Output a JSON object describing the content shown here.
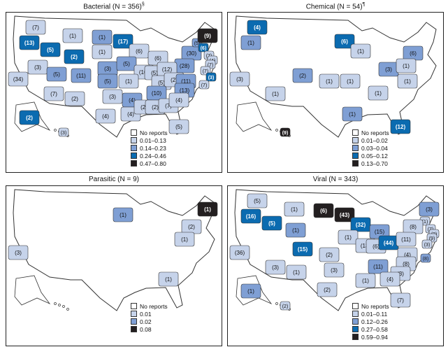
{
  "colors": {
    "level0": "#ffffff",
    "level1": "#c6d3ea",
    "level2": "#7f9fd4",
    "level3": "#0b6bb0",
    "level4": "#231f20"
  },
  "panels": [
    {
      "title": "Bacterial (N = 356)",
      "footnote": "§",
      "legend": [
        "No reports",
        "0.01–0.13",
        "0.14–0.23",
        "0.24–0.46",
        "0.47–0.80"
      ],
      "states": [
        {
          "state": "WA",
          "count": 7,
          "level": 1
        },
        {
          "state": "OR",
          "count": 13,
          "level": 3
        },
        {
          "state": "ID",
          "count": 5,
          "level": 3
        },
        {
          "state": "MT",
          "count": 1,
          "level": 1
        },
        {
          "state": "ND",
          "count": 1,
          "level": 2
        },
        {
          "state": "MN",
          "count": 17,
          "level": 3
        },
        {
          "state": "WY",
          "count": 2,
          "level": 3
        },
        {
          "state": "SD",
          "count": 1,
          "level": 1
        },
        {
          "state": "WI",
          "count": 6,
          "level": 1
        },
        {
          "state": "MI",
          "count": 6,
          "level": 1
        },
        {
          "state": "NY",
          "count": 30,
          "level": 2
        },
        {
          "state": "VT",
          "count": 5,
          "level": 2
        },
        {
          "state": "NH",
          "count": 6,
          "level": 3
        },
        {
          "state": "ME",
          "count": 9,
          "level": 4
        },
        {
          "state": "MA",
          "count": 7,
          "level": 1
        },
        {
          "state": "RI",
          "count": 4,
          "level": 1
        },
        {
          "state": "CT",
          "count": 7,
          "level": 1
        },
        {
          "state": "NJ",
          "count": 7,
          "level": 1
        },
        {
          "state": "DE",
          "count": 3,
          "level": 3
        },
        {
          "state": "MD",
          "count": 7,
          "level": 1
        },
        {
          "state": "PA",
          "count": 28,
          "level": 2
        },
        {
          "state": "CA",
          "count": 34,
          "level": 1
        },
        {
          "state": "NV",
          "count": 3,
          "level": 1
        },
        {
          "state": "UT",
          "count": 5,
          "level": 2
        },
        {
          "state": "CO",
          "count": 11,
          "level": 2
        },
        {
          "state": "NE",
          "count": 3,
          "level": 2
        },
        {
          "state": "KS",
          "count": 5,
          "level": 2
        },
        {
          "state": "IA",
          "count": 5,
          "level": 2
        },
        {
          "state": "IL",
          "count": 10,
          "level": 1
        },
        {
          "state": "IN",
          "count": 5,
          "level": 1
        },
        {
          "state": "OH",
          "count": 12,
          "level": 1
        },
        {
          "state": "MO",
          "count": 1,
          "level": 1
        },
        {
          "state": "KY",
          "count": 5,
          "level": 1
        },
        {
          "state": "WV",
          "count": 2,
          "level": 1
        },
        {
          "state": "VA",
          "count": 11,
          "level": 2
        },
        {
          "state": "NC",
          "count": 13,
          "level": 2
        },
        {
          "state": "TN",
          "count": 10,
          "level": 2
        },
        {
          "state": "AR",
          "count": 4,
          "level": 2
        },
        {
          "state": "OK",
          "count": 3,
          "level": 1
        },
        {
          "state": "AZ",
          "count": 7,
          "level": 1
        },
        {
          "state": "NM",
          "count": 2,
          "level": 1
        },
        {
          "state": "TX",
          "count": 4,
          "level": 1
        },
        {
          "state": "LA",
          "count": 4,
          "level": 1
        },
        {
          "state": "MS",
          "count": 2,
          "level": 1
        },
        {
          "state": "AL",
          "count": 2,
          "level": 1
        },
        {
          "state": "GA",
          "count": 7,
          "level": 1
        },
        {
          "state": "SC",
          "count": 4,
          "level": 1
        },
        {
          "state": "FL",
          "count": 5,
          "level": 1
        },
        {
          "state": "AK",
          "count": 2,
          "level": 3
        },
        {
          "state": "HI",
          "count": 3,
          "level": 1
        }
      ]
    },
    {
      "title": "Chemical (N = 54)",
      "footnote": "¶",
      "legend": [
        "No reports",
        "0.01–0.02",
        "0.03–0.04",
        "0.05–0.12",
        "0.13–0.70"
      ],
      "states": [
        {
          "state": "WA",
          "count": 4,
          "level": 3
        },
        {
          "state": "OR",
          "count": 1,
          "level": 2
        },
        {
          "state": "MN",
          "count": 6,
          "level": 3
        },
        {
          "state": "WI",
          "count": 1,
          "level": 1
        },
        {
          "state": "NY",
          "count": 6,
          "level": 2
        },
        {
          "state": "CA",
          "count": 3,
          "level": 1
        },
        {
          "state": "CO",
          "count": 2,
          "level": 2
        },
        {
          "state": "KS",
          "count": 1,
          "level": 1
        },
        {
          "state": "MO",
          "count": 1,
          "level": 1
        },
        {
          "state": "OH",
          "count": 3,
          "level": 2
        },
        {
          "state": "PA",
          "count": 1,
          "level": 1
        },
        {
          "state": "VA",
          "count": 1,
          "level": 1
        },
        {
          "state": "TN",
          "count": 1,
          "level": 1
        },
        {
          "state": "AZ",
          "count": 1,
          "level": 1
        },
        {
          "state": "LA",
          "count": 1,
          "level": 2
        },
        {
          "state": "FL",
          "count": 12,
          "level": 3
        },
        {
          "state": "HI",
          "count": 9,
          "level": 4
        }
      ]
    },
    {
      "title": "Parasitic (N = 9)",
      "footnote": "",
      "legend": [
        "No reports",
        "0.01",
        "0.02",
        "0.08"
      ],
      "states": [
        {
          "state": "MN",
          "count": 1,
          "level": 2
        },
        {
          "state": "ME",
          "count": 1,
          "level": 4
        },
        {
          "state": "NY",
          "count": 2,
          "level": 1
        },
        {
          "state": "PA",
          "count": 1,
          "level": 1
        },
        {
          "state": "CA",
          "count": 3,
          "level": 1
        },
        {
          "state": "GA",
          "count": 1,
          "level": 1
        }
      ]
    },
    {
      "title": "Viral (N = 343)",
      "footnote": "",
      "legend": [
        "No reports",
        "0.01–0.11",
        "0.12–0.26",
        "0.27–0.58",
        "0.59–0.94"
      ],
      "states": [
        {
          "state": "WA",
          "count": 5,
          "level": 1
        },
        {
          "state": "OR",
          "count": 16,
          "level": 3
        },
        {
          "state": "ID",
          "count": 5,
          "level": 3
        },
        {
          "state": "MT",
          "count": 1,
          "level": 1
        },
        {
          "state": "ND",
          "count": 6,
          "level": 4
        },
        {
          "state": "MN",
          "count": 43,
          "level": 4
        },
        {
          "state": "WI",
          "count": 32,
          "level": 3
        },
        {
          "state": "WY",
          "count": 1,
          "level": 2
        },
        {
          "state": "MI",
          "count": 15,
          "level": 2
        },
        {
          "state": "IA",
          "count": 1,
          "level": 1
        },
        {
          "state": "IL",
          "count": 13,
          "level": 1
        },
        {
          "state": "IN",
          "count": 6,
          "level": 1
        },
        {
          "state": "OH",
          "count": 44,
          "level": 3
        },
        {
          "state": "CO",
          "count": 15,
          "level": 3
        },
        {
          "state": "KS",
          "count": 2,
          "level": 1
        },
        {
          "state": "CA",
          "count": 36,
          "level": 1
        },
        {
          "state": "AZ",
          "count": 3,
          "level": 1
        },
        {
          "state": "NM",
          "count": 1,
          "level": 1
        },
        {
          "state": "OK",
          "count": 3,
          "level": 1
        },
        {
          "state": "TX",
          "count": 2,
          "level": 1
        },
        {
          "state": "AK",
          "count": 1,
          "level": 2
        },
        {
          "state": "HI",
          "count": 2,
          "level": 1
        },
        {
          "state": "ME",
          "count": 3,
          "level": 2
        },
        {
          "state": "NH",
          "count": 1,
          "level": 1
        },
        {
          "state": "NY",
          "count": 8,
          "level": 1
        },
        {
          "state": "MA",
          "count": 7,
          "level": 1
        },
        {
          "state": "RI",
          "count": 2,
          "level": 1
        },
        {
          "state": "CT",
          "count": 9,
          "level": 1
        },
        {
          "state": "NJ",
          "count": 3,
          "level": 1
        },
        {
          "state": "MD",
          "count": 8,
          "level": 2
        },
        {
          "state": "PA",
          "count": 11,
          "level": 1
        },
        {
          "state": "VA",
          "count": 4,
          "level": 1
        },
        {
          "state": "NC",
          "count": 8,
          "level": 1
        },
        {
          "state": "TN",
          "count": 11,
          "level": 2
        },
        {
          "state": "SC",
          "count": 3,
          "level": 1
        },
        {
          "state": "GA",
          "count": 4,
          "level": 1
        },
        {
          "state": "MS",
          "count": 1,
          "level": 1
        },
        {
          "state": "FL",
          "count": 7,
          "level": 1
        }
      ]
    }
  ]
}
